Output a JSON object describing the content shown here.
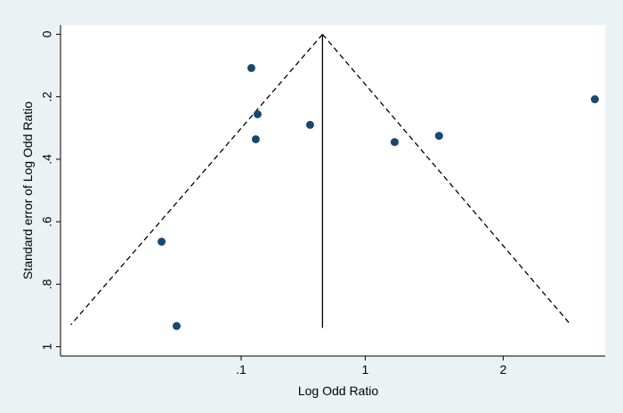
{
  "chart_data": {
    "type": "scatter",
    "x_label": "Log Odd Ratio",
    "y_label": "Standard error of Log Odd Ratio",
    "x": [
      0.174,
      0.219,
      0.206,
      0.6,
      1.213,
      1.535,
      2.665,
      -0.477,
      -0.368
    ],
    "values": [
      0.108,
      0.256,
      0.336,
      0.29,
      0.345,
      0.325,
      0.208,
      0.664,
      0.934
    ],
    "color": "#1a476f",
    "xlim": [
      -1.21,
      2.74
    ],
    "ylim": [
      -0.03,
      1.03
    ],
    "y_reversed": true,
    "xticks": [
      {
        "value": 0.1,
        "label": ".1"
      },
      1,
      2
    ],
    "yticks": [
      0,
      {
        "value": 0.2,
        "label": ".2"
      },
      {
        "value": 0.4,
        "label": ".4"
      },
      {
        "value": 0.6,
        "label": ".6"
      },
      {
        "value": 0.8,
        "label": ".8"
      },
      1
    ],
    "grid": false,
    "lines": [
      {
        "x": [
          0.69,
          0.69
        ],
        "y": [
          0,
          0.94
        ],
        "dash": false
      },
      {
        "x": [
          0.69,
          -1.135
        ],
        "y": [
          0,
          0.93
        ],
        "dash": true
      },
      {
        "x": [
          0.69,
          2.49
        ],
        "y": [
          0,
          0.93
        ],
        "dash": true
      }
    ]
  }
}
